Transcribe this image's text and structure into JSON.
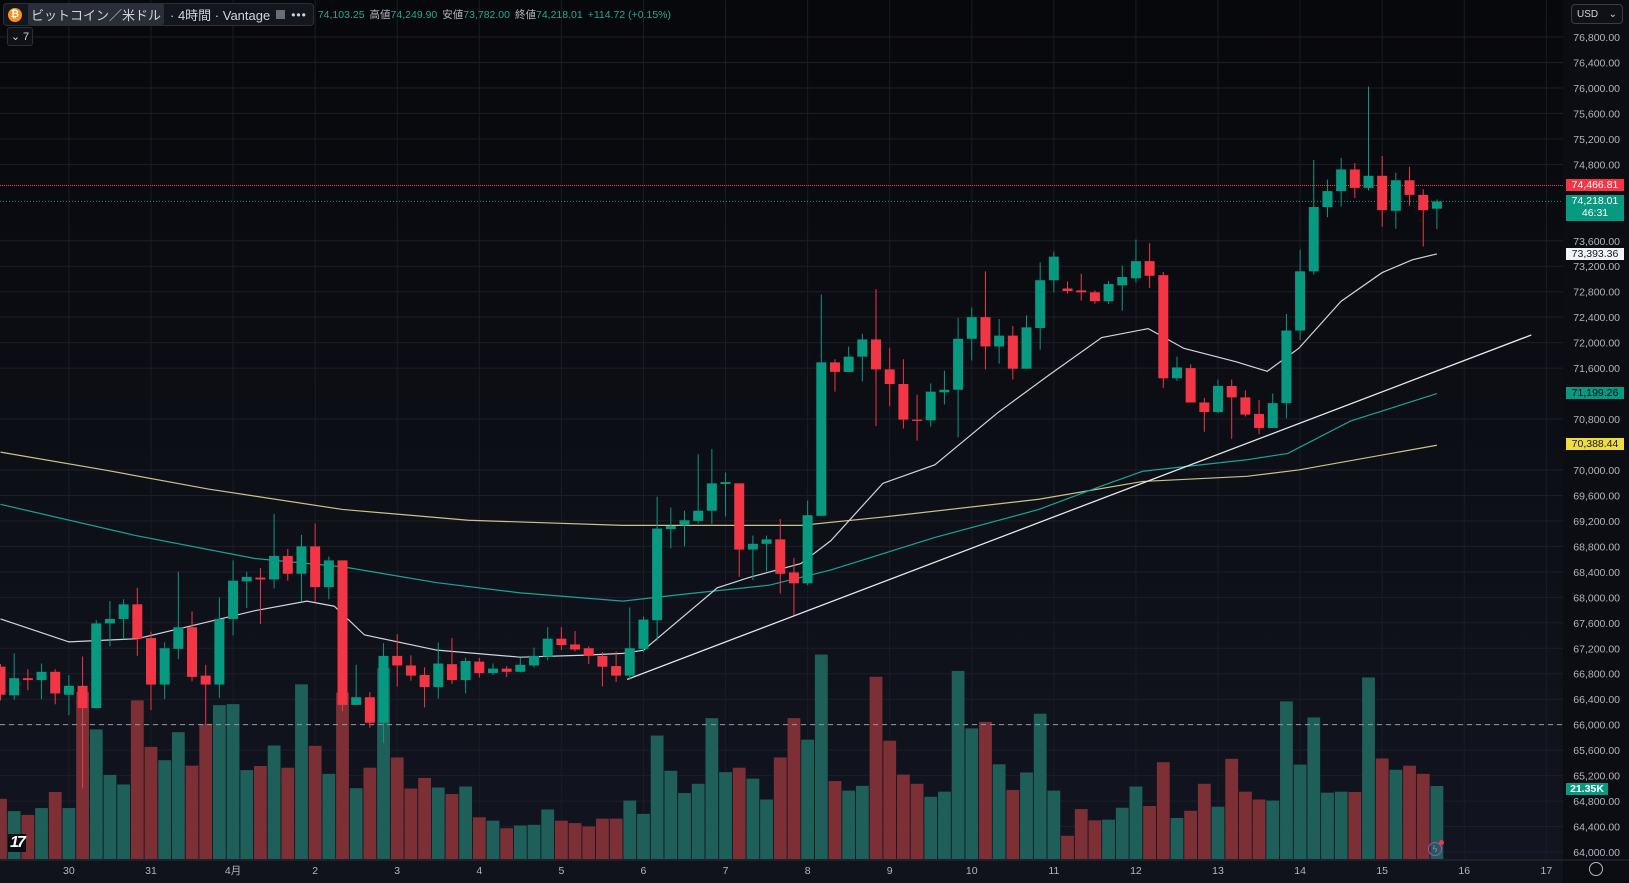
{
  "header": {
    "symbol": "ビットコイン／米ドル",
    "interval": "· 4時間 · Vantage",
    "more_label": "•••",
    "open_value": "74,103.25",
    "high_label": "高値",
    "high_value": "74,249.90",
    "low_label": "安値",
    "low_value": "73,782.00",
    "close_label": "終値",
    "close_value": "74,218.01",
    "change": "+114.72 (+0.15%)",
    "indicators_toggle": "7",
    "btc_icon_glyph": "₿"
  },
  "currency_select": "USD",
  "badges": {
    "last_high_line": "74,466.81",
    "current_price": "74,218.01",
    "countdown": "46:31",
    "ma_fast": "73,393.36",
    "ma_mid": "71,199.26",
    "ma_slow": "70,388.44",
    "volume": "21.35K"
  },
  "logo_text": "17",
  "colors": {
    "up": "#089981",
    "down": "#f23645",
    "vol_up": "#1e5f5a",
    "vol_down": "#7c3036",
    "ma_fast": "#d1d4dc",
    "ma_mid": "#1aa394",
    "ma_slow": "#c9c38a",
    "trend": "#e8e8e8",
    "bg": "#0c0d12"
  },
  "chart_data": {
    "type": "candlestick",
    "title": "BTC/USD 4H Vantage",
    "ylim": [
      64000,
      76800
    ],
    "y_ticks": [
      "76,800.00",
      "76,400.00",
      "76,000.00",
      "75,600.00",
      "75,200.00",
      "74,800.00",
      "73,600.00",
      "73,200.00",
      "72,800.00",
      "72,400.00",
      "72,000.00",
      "71,600.00",
      "70,800.00",
      "70,000.00",
      "69,600.00",
      "69,200.00",
      "68,800.00",
      "68,400.00",
      "68,000.00",
      "67,600.00",
      "67,200.00",
      "66,800.00",
      "66,400.00",
      "66,000.00",
      "65,600.00",
      "65,200.00",
      "64,800.00",
      "64,400.00",
      "64,000.00"
    ],
    "x_ticks": [
      {
        "i": 5,
        "label": "30"
      },
      {
        "i": 11,
        "label": "31"
      },
      {
        "i": 17,
        "label": "4月"
      },
      {
        "i": 23,
        "label": "2"
      },
      {
        "i": 29,
        "label": "3"
      },
      {
        "i": 35,
        "label": "4"
      },
      {
        "i": 41,
        "label": "5"
      },
      {
        "i": 47,
        "label": "6"
      },
      {
        "i": 53,
        "label": "7"
      },
      {
        "i": 59,
        "label": "8"
      },
      {
        "i": 65,
        "label": "9"
      },
      {
        "i": 71,
        "label": "10"
      },
      {
        "i": 77,
        "label": "11"
      },
      {
        "i": 83,
        "label": "12"
      },
      {
        "i": 89,
        "label": "13"
      },
      {
        "i": 95,
        "label": "14"
      },
      {
        "i": 101,
        "label": "15"
      },
      {
        "i": 107,
        "label": "16"
      },
      {
        "i": 113,
        "label": "17"
      }
    ],
    "ohlc": [
      [
        66910,
        66950,
        66380,
        66470
      ],
      [
        66460,
        67120,
        66390,
        66730
      ],
      [
        66730,
        66870,
        66540,
        66700
      ],
      [
        66700,
        66960,
        66400,
        66830
      ],
      [
        66830,
        66870,
        66320,
        66490
      ],
      [
        66470,
        66780,
        66150,
        66610
      ],
      [
        66610,
        67070,
        65000,
        66260
      ],
      [
        66260,
        67640,
        66260,
        67590
      ],
      [
        67590,
        67940,
        67230,
        67660
      ],
      [
        67660,
        67970,
        67340,
        67890
      ],
      [
        67890,
        68150,
        67080,
        67350
      ],
      [
        67360,
        67460,
        66230,
        66630
      ],
      [
        66630,
        67290,
        66400,
        67200
      ],
      [
        67190,
        68400,
        67030,
        67530
      ],
      [
        67530,
        67780,
        66680,
        66750
      ],
      [
        66770,
        66940,
        66000,
        66630
      ],
      [
        66630,
        68000,
        66420,
        67660
      ],
      [
        67660,
        68580,
        67400,
        68260
      ],
      [
        68250,
        68400,
        67830,
        68320
      ],
      [
        68310,
        68460,
        67580,
        68280
      ],
      [
        68280,
        69310,
        68140,
        68650
      ],
      [
        68650,
        68760,
        68260,
        68370
      ],
      [
        68370,
        68980,
        67930,
        68800
      ],
      [
        68800,
        69160,
        67930,
        68160
      ],
      [
        68160,
        68640,
        67970,
        68580
      ],
      [
        68580,
        68580,
        66210,
        66310
      ],
      [
        66310,
        66940,
        66310,
        66430
      ],
      [
        66430,
        66510,
        65950,
        66030
      ],
      [
        66030,
        67280,
        65710,
        67080
      ],
      [
        67080,
        67420,
        66600,
        66930
      ],
      [
        66930,
        67090,
        66690,
        66770
      ],
      [
        66780,
        66900,
        66270,
        66590
      ],
      [
        66590,
        67290,
        66410,
        66960
      ],
      [
        66950,
        67360,
        66640,
        66700
      ],
      [
        66700,
        67050,
        66490,
        67000
      ],
      [
        66990,
        67050,
        66740,
        66810
      ],
      [
        66810,
        66960,
        66780,
        66880
      ],
      [
        66880,
        66920,
        66750,
        66830
      ],
      [
        66830,
        67050,
        66820,
        66940
      ],
      [
        66930,
        67210,
        66900,
        67080
      ],
      [
        67070,
        67530,
        67010,
        67350
      ],
      [
        67350,
        67530,
        67170,
        67250
      ],
      [
        67260,
        67470,
        67150,
        67180
      ],
      [
        67200,
        67230,
        66950,
        67080
      ],
      [
        67080,
        67140,
        66600,
        66910
      ],
      [
        66920,
        67150,
        66670,
        66770
      ],
      [
        66770,
        67840,
        66700,
        67200
      ],
      [
        67190,
        67700,
        67140,
        67650
      ],
      [
        67640,
        69580,
        67320,
        69080
      ],
      [
        69070,
        69410,
        68770,
        69120
      ],
      [
        69130,
        69360,
        68800,
        69210
      ],
      [
        69200,
        70250,
        69160,
        69360
      ],
      [
        69360,
        70330,
        69150,
        69790
      ],
      [
        69780,
        69960,
        69270,
        69810
      ],
      [
        69790,
        69790,
        68320,
        68750
      ],
      [
        68750,
        68970,
        68270,
        68840
      ],
      [
        68840,
        68970,
        68410,
        68910
      ],
      [
        68910,
        69230,
        68060,
        68370
      ],
      [
        68390,
        68620,
        67720,
        68220
      ],
      [
        68220,
        69520,
        68190,
        69290
      ],
      [
        69280,
        72755,
        69280,
        71690
      ],
      [
        71690,
        71740,
        71230,
        71540
      ],
      [
        71540,
        71940,
        71540,
        71780
      ],
      [
        71780,
        72140,
        71390,
        72050
      ],
      [
        72050,
        72840,
        70690,
        71580
      ],
      [
        71580,
        71920,
        71000,
        71350
      ],
      [
        71350,
        71740,
        70650,
        70790
      ],
      [
        70790,
        71180,
        70460,
        70770
      ],
      [
        70780,
        71360,
        70680,
        71230
      ],
      [
        71220,
        71560,
        71030,
        71260
      ],
      [
        71260,
        72390,
        70510,
        72060
      ],
      [
        72060,
        72550,
        71720,
        72400
      ],
      [
        72400,
        73120,
        71580,
        71940
      ],
      [
        71940,
        72370,
        71670,
        72110
      ],
      [
        72110,
        72260,
        71420,
        71590
      ],
      [
        71590,
        72430,
        71590,
        72240
      ],
      [
        72230,
        73260,
        71890,
        72980
      ],
      [
        72980,
        73430,
        72790,
        73350
      ],
      [
        72850,
        72960,
        72770,
        72810
      ],
      [
        72820,
        73080,
        72660,
        72790
      ],
      [
        72790,
        72820,
        72610,
        72650
      ],
      [
        72650,
        72970,
        72610,
        72920
      ],
      [
        72900,
        73210,
        72500,
        73030
      ],
      [
        73010,
        73620,
        72940,
        73280
      ],
      [
        73280,
        73560,
        72860,
        73050
      ],
      [
        73060,
        73110,
        71290,
        71440
      ],
      [
        71440,
        71780,
        71400,
        71610
      ],
      [
        71600,
        71660,
        71060,
        71060
      ],
      [
        71060,
        71130,
        70600,
        70910
      ],
      [
        70910,
        71420,
        70890,
        71320
      ],
      [
        71320,
        71420,
        70490,
        71140
      ],
      [
        71140,
        71250,
        70840,
        70870
      ],
      [
        70880,
        71100,
        70560,
        70660
      ],
      [
        70660,
        71200,
        70660,
        71050
      ],
      [
        71050,
        72450,
        70810,
        72190
      ],
      [
        72190,
        73460,
        72040,
        73120
      ],
      [
        73120,
        74870,
        73070,
        74130
      ],
      [
        74130,
        74560,
        73970,
        74380
      ],
      [
        74380,
        74900,
        74140,
        74720
      ],
      [
        74720,
        74820,
        74270,
        74430
      ],
      [
        74430,
        76020,
        74390,
        74620
      ],
      [
        74620,
        74930,
        73820,
        74080
      ],
      [
        74070,
        74670,
        73790,
        74550
      ],
      [
        74550,
        74760,
        74150,
        74320
      ],
      [
        74320,
        74410,
        73510,
        74080
      ],
      [
        74103.25,
        74249.9,
        73782,
        74218.01
      ]
    ],
    "volume_k": [
      17.6,
      14.0,
      12.9,
      14.9,
      19.6,
      14.9,
      48.9,
      37.9,
      24.6,
      21.8,
      46.4,
      32.8,
      28.9,
      37.1,
      27.3,
      39.5,
      45,
      45.3,
      26.0,
      27.2,
      33.2,
      26.7,
      51.1,
      33.1,
      24.9,
      48.7,
      20.7,
      26.7,
      55.8,
      29.7,
      20.6,
      23.7,
      20.9,
      19.0,
      21.2,
      12.2,
      11.2,
      9.0,
      9.8,
      10.0,
      14.5,
      11.2,
      10.5,
      9.5,
      11.8,
      11.8,
      17.1,
      13.2,
      36.1,
      25.8,
      19.3,
      22.0,
      41.2,
      25.4,
      26.7,
      23.5,
      17.4,
      29.7,
      41.2,
      34.9,
      59.8,
      22.8,
      20.0,
      21.4,
      53.3,
      34.6,
      24.7,
      22.0,
      18.2,
      19.7,
      55.0,
      38.2,
      40.1,
      27.7,
      20.2,
      25.3,
      42.5,
      20.0,
      6.8,
      14.6,
      11.3,
      11.5,
      15.0,
      21.2,
      15.5,
      28.3,
      12.0,
      14.1,
      22.0,
      15.3,
      29.3,
      19.7,
      17.4,
      17.1,
      46.1,
      27.6,
      41.4,
      19.4,
      19.7,
      19.6,
      53.1,
      29.4,
      26.1,
      27.3,
      24.9,
      21.35
    ],
    "ma_fast": [
      [
        0,
        67660
      ],
      [
        5,
        67300
      ],
      [
        10,
        67350
      ],
      [
        18.6,
        67790
      ],
      [
        22.4,
        67940
      ],
      [
        24.4,
        67860
      ],
      [
        26.6,
        67410
      ],
      [
        31.9,
        67170
      ],
      [
        38,
        67060
      ],
      [
        42.5,
        67090
      ],
      [
        45.5,
        67120
      ],
      [
        47,
        67170
      ],
      [
        52.4,
        68150
      ],
      [
        54.7,
        68310
      ],
      [
        58.5,
        68530
      ],
      [
        60.7,
        68890
      ],
      [
        64.5,
        69790
      ],
      [
        68.3,
        70080
      ],
      [
        72.9,
        70900
      ],
      [
        76.7,
        71500
      ],
      [
        80.5,
        72080
      ],
      [
        83.9,
        72220
      ],
      [
        86.5,
        71910
      ],
      [
        90.3,
        71700
      ],
      [
        92.6,
        71550
      ],
      [
        94.9,
        71910
      ],
      [
        98,
        72650
      ],
      [
        101,
        73100
      ],
      [
        103.2,
        73300
      ],
      [
        105,
        73393.36
      ]
    ],
    "ma_mid": [
      [
        0,
        69460
      ],
      [
        9.9,
        68970
      ],
      [
        18.6,
        68610
      ],
      [
        25,
        68480
      ],
      [
        31.9,
        68230
      ],
      [
        38,
        68070
      ],
      [
        45.5,
        67940
      ],
      [
        50,
        68050
      ],
      [
        56.2,
        68190
      ],
      [
        60.7,
        68430
      ],
      [
        68.3,
        68940
      ],
      [
        75.9,
        69380
      ],
      [
        80.5,
        69750
      ],
      [
        83.5,
        69980
      ],
      [
        91.1,
        70160
      ],
      [
        94.1,
        70260
      ],
      [
        98.7,
        70770
      ],
      [
        105,
        71199.26
      ]
    ],
    "ma_slow": [
      [
        0,
        70280
      ],
      [
        7.6,
        70000
      ],
      [
        15.2,
        69700
      ],
      [
        25,
        69380
      ],
      [
        34.2,
        69210
      ],
      [
        45.5,
        69130
      ],
      [
        53.1,
        69130
      ],
      [
        58.5,
        69130
      ],
      [
        64.5,
        69260
      ],
      [
        75.9,
        69540
      ],
      [
        83.5,
        69820
      ],
      [
        91.1,
        69900
      ],
      [
        94.9,
        70000
      ],
      [
        105,
        70388.44
      ]
    ],
    "trendline": [
      [
        45.8,
        66710
      ],
      [
        111.9,
        72120
      ]
    ],
    "horizontal_lines": {
      "high_line": 74466.81,
      "current": 74218.01,
      "dashed": 66000
    }
  }
}
